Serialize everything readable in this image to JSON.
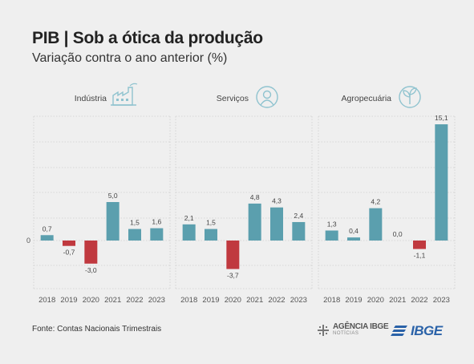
{
  "title": "PIB | Sob a ótica da produção",
  "subtitle": "Variação contra o ano anterior (%)",
  "source": "Fonte: Contas Nacionais Trimestrais",
  "logos": {
    "agencia_line1": "AGÊNCIA IBGE",
    "agencia_line2": "NOTÍCIAS",
    "ibge": "IBGE"
  },
  "colors": {
    "positive": "#5b9fae",
    "negative": "#c0393f",
    "grid": "#cfcfcf",
    "icon": "#8fc3cf"
  },
  "chart_data": [
    {
      "type": "bar",
      "title": "Indústria",
      "icon": "factory-icon",
      "categories": [
        "2018",
        "2019",
        "2020",
        "2021",
        "2022",
        "2023"
      ],
      "values": [
        0.7,
        -0.7,
        -3.0,
        5.0,
        1.5,
        1.6
      ],
      "labels": [
        "0,7",
        "-0,7",
        "-3,0",
        "5,0",
        "1,5",
        "1,6"
      ],
      "zero_label": "0"
    },
    {
      "type": "bar",
      "title": "Serviços",
      "icon": "person-icon",
      "categories": [
        "2018",
        "2019",
        "2020",
        "2021",
        "2022",
        "2023"
      ],
      "values": [
        2.1,
        1.5,
        -3.7,
        4.8,
        4.3,
        2.4
      ],
      "labels": [
        "2,1",
        "1,5",
        "-3,7",
        "4,8",
        "4,3",
        "2,4"
      ]
    },
    {
      "type": "bar",
      "title": "Agropecuária",
      "icon": "plant-icon",
      "categories": [
        "2018",
        "2019",
        "2020",
        "2021",
        "2022",
        "2023"
      ],
      "values": [
        1.3,
        0.4,
        4.2,
        0.0,
        -1.1,
        15.1
      ],
      "labels": [
        "1,3",
        "0,4",
        "4,2",
        "0,0",
        "-1,1",
        "15,1"
      ]
    }
  ]
}
